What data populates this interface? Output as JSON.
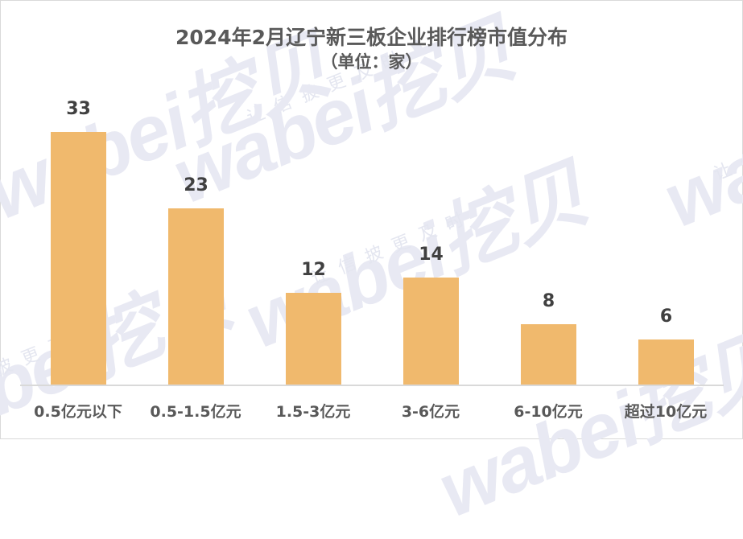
{
  "chart_data": {
    "type": "bar",
    "title": "2024年2月辽宁新三板企业排行榜市值分布",
    "subtitle": "（单位：家）",
    "categories": [
      "0.5亿元以下",
      "0.5-1.5亿元",
      "1.5-3亿元",
      "3-6亿元",
      "6-10亿元",
      "超过10亿元"
    ],
    "values": [
      33,
      23,
      12,
      14,
      8,
      6
    ],
    "xlabel": "",
    "ylabel": "",
    "ylim": [
      0,
      36
    ],
    "grid": false,
    "legend": null,
    "data_labels": true,
    "bar_color": "#f0b96d"
  },
  "watermark": {
    "brand": "wabei挖贝",
    "slogan": "让信披更及时"
  },
  "colors": {
    "bar": "#f0b96d",
    "text": "#595959",
    "data_label": "#404040",
    "axis": "#d9d9d9"
  }
}
